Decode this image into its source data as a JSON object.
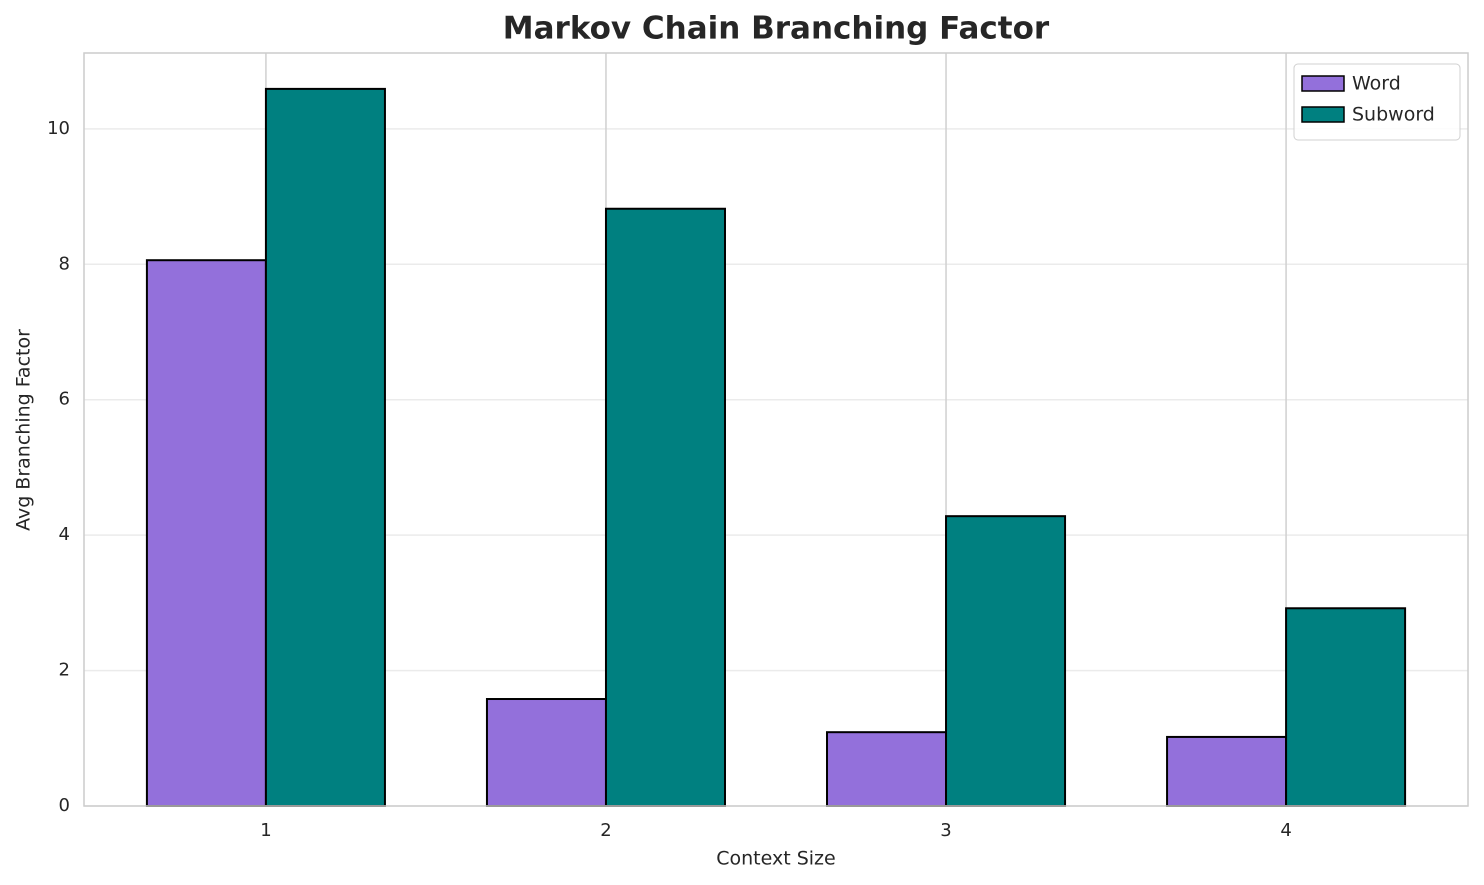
{
  "chart_data": {
    "type": "bar",
    "title": "Markov Chain Branching Factor",
    "x_label": "Context Size",
    "y_label": "Avg Branching Factor",
    "categories": [
      "1",
      "2",
      "3",
      "4"
    ],
    "series": [
      {
        "name": "Word",
        "color": "#9370db",
        "values": [
          8.06,
          1.58,
          1.09,
          1.02
        ]
      },
      {
        "name": "Subword",
        "color": "#008080",
        "values": [
          10.59,
          8.82,
          4.28,
          2.92
        ]
      }
    ],
    "ylim": [
      0,
      11.12
    ],
    "yticks": [
      0,
      2,
      4,
      6,
      8,
      10
    ],
    "grid": true,
    "legend": "upper right"
  }
}
